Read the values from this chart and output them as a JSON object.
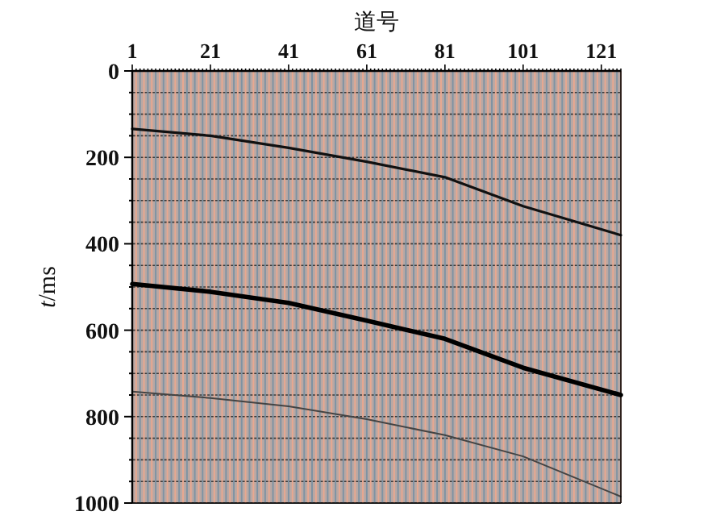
{
  "chart_data": {
    "type": "line",
    "xlabel": "道号",
    "ylabel": "*t*/ms",
    "x": [
      1,
      21,
      41,
      61,
      81,
      101,
      126
    ],
    "series": [
      {
        "color": "#111111",
        "values": [
          134,
          150,
          178,
          210,
          246,
          313,
          380
        ]
      },
      {
        "color": "#000000",
        "values": [
          493,
          511,
          537,
          578,
          620,
          687,
          750
        ]
      },
      {
        "color": "#444444",
        "values": [
          742,
          757,
          776,
          806,
          843,
          892,
          985
        ]
      }
    ],
    "xlim": [
      1,
      126
    ],
    "xticks": [
      1,
      {
        "value": 2,
        "label": null
      },
      {
        "value": 3,
        "label": null
      },
      {
        "value": 4,
        "label": null
      },
      {
        "value": 5,
        "label": null
      },
      {
        "value": 6,
        "label": null
      },
      {
        "value": 7,
        "label": null
      },
      {
        "value": 8,
        "label": null
      },
      {
        "value": 9,
        "label": null
      },
      {
        "value": 10,
        "label": null
      },
      {
        "value": 11,
        "label": null
      },
      {
        "value": 12,
        "label": null
      },
      {
        "value": 13,
        "label": null
      },
      {
        "value": 14,
        "label": null
      },
      {
        "value": 15,
        "label": null
      },
      {
        "value": 16,
        "label": null
      },
      {
        "value": 17,
        "label": null
      },
      {
        "value": 18,
        "label": null
      },
      {
        "value": 19,
        "label": null
      },
      {
        "value": 20,
        "label": null
      },
      21,
      {
        "value": 22,
        "label": null
      },
      {
        "value": 23,
        "label": null
      },
      {
        "value": 24,
        "label": null
      },
      {
        "value": 25,
        "label": null
      },
      {
        "value": 26,
        "label": null
      },
      {
        "value": 27,
        "label": null
      },
      {
        "value": 28,
        "label": null
      },
      {
        "value": 29,
        "label": null
      },
      {
        "value": 30,
        "label": null
      },
      {
        "value": 31,
        "label": null
      },
      {
        "value": 32,
        "label": null
      },
      {
        "value": 33,
        "label": null
      },
      {
        "value": 34,
        "label": null
      },
      {
        "value": 35,
        "label": null
      },
      {
        "value": 36,
        "label": null
      },
      {
        "value": 37,
        "label": null
      },
      {
        "value": 38,
        "label": null
      },
      {
        "value": 39,
        "label": null
      },
      {
        "value": 40,
        "label": null
      },
      41,
      {
        "value": 42,
        "label": null
      },
      {
        "value": 43,
        "label": null
      },
      {
        "value": 44,
        "label": null
      },
      {
        "value": 45,
        "label": null
      },
      {
        "value": 46,
        "label": null
      },
      {
        "value": 47,
        "label": null
      },
      {
        "value": 48,
        "label": null
      },
      {
        "value": 49,
        "label": null
      },
      {
        "value": 50,
        "label": null
      },
      {
        "value": 51,
        "label": null
      },
      {
        "value": 52,
        "label": null
      },
      {
        "value": 53,
        "label": null
      },
      {
        "value": 54,
        "label": null
      },
      {
        "value": 55,
        "label": null
      },
      {
        "value": 56,
        "label": null
      },
      {
        "value": 57,
        "label": null
      },
      {
        "value": 58,
        "label": null
      },
      {
        "value": 59,
        "label": null
      },
      {
        "value": 60,
        "label": null
      },
      61,
      {
        "value": 62,
        "label": null
      },
      {
        "value": 63,
        "label": null
      },
      {
        "value": 64,
        "label": null
      },
      {
        "value": 65,
        "label": null
      },
      {
        "value": 66,
        "label": null
      },
      {
        "value": 67,
        "label": null
      },
      {
        "value": 68,
        "label": null
      },
      {
        "value": 69,
        "label": null
      },
      {
        "value": 70,
        "label": null
      },
      {
        "value": 71,
        "label": null
      },
      {
        "value": 72,
        "label": null
      },
      {
        "value": 73,
        "label": null
      },
      {
        "value": 74,
        "label": null
      },
      {
        "value": 75,
        "label": null
      },
      {
        "value": 76,
        "label": null
      },
      {
        "value": 77,
        "label": null
      },
      {
        "value": 78,
        "label": null
      },
      {
        "value": 79,
        "label": null
      },
      {
        "value": 80,
        "label": null
      },
      81,
      {
        "value": 82,
        "label": null
      },
      {
        "value": 83,
        "label": null
      },
      {
        "value": 84,
        "label": null
      },
      {
        "value": 85,
        "label": null
      },
      {
        "value": 86,
        "label": null
      },
      {
        "value": 87,
        "label": null
      },
      {
        "value": 88,
        "label": null
      },
      {
        "value": 89,
        "label": null
      },
      {
        "value": 90,
        "label": null
      },
      {
        "value": 91,
        "label": null
      },
      {
        "value": 92,
        "label": null
      },
      {
        "value": 93,
        "label": null
      },
      {
        "value": 94,
        "label": null
      },
      {
        "value": 95,
        "label": null
      },
      {
        "value": 96,
        "label": null
      },
      {
        "value": 97,
        "label": null
      },
      {
        "value": 98,
        "label": null
      },
      {
        "value": 99,
        "label": null
      },
      {
        "value": 100,
        "label": null
      },
      101,
      {
        "value": 102,
        "label": null
      },
      {
        "value": 103,
        "label": null
      },
      {
        "value": 104,
        "label": null
      },
      {
        "value": 105,
        "label": null
      },
      {
        "value": 106,
        "label": null
      },
      {
        "value": 107,
        "label": null
      },
      {
        "value": 108,
        "label": null
      },
      {
        "value": 109,
        "label": null
      },
      {
        "value": 110,
        "label": null
      },
      {
        "value": 111,
        "label": null
      },
      {
        "value": 112,
        "label": null
      },
      {
        "value": 113,
        "label": null
      },
      {
        "value": 114,
        "label": null
      },
      {
        "value": 115,
        "label": null
      },
      {
        "value": 116,
        "label": null
      },
      {
        "value": 117,
        "label": null
      },
      {
        "value": 118,
        "label": null
      },
      {
        "value": 119,
        "label": null
      },
      {
        "value": 120,
        "label": null
      },
      121,
      {
        "value": 122,
        "label": null
      },
      {
        "value": 123,
        "label": null
      },
      {
        "value": 124,
        "label": null
      },
      {
        "value": 125,
        "label": null
      },
      {
        "value": 126,
        "label": null
      }
    ],
    "ylim": [
      1000,
      0
    ],
    "yticks": [
      0,
      {
        "value": 50,
        "label": null
      },
      {
        "value": 100,
        "label": null
      },
      {
        "value": 150,
        "label": null
      },
      200,
      {
        "value": 250,
        "label": null
      },
      {
        "value": 300,
        "label": null
      },
      {
        "value": 350,
        "label": null
      },
      400,
      {
        "value": 450,
        "label": null
      },
      {
        "value": 500,
        "label": null
      },
      {
        "value": 550,
        "label": null
      },
      600,
      {
        "value": 650,
        "label": null
      },
      {
        "value": 700,
        "label": null
      },
      {
        "value": 750,
        "label": null
      },
      800,
      {
        "value": 850,
        "label": null
      },
      {
        "value": 900,
        "label": null
      },
      {
        "value": 950,
        "label": null
      },
      1000
    ],
    "grid": true,
    "marker": "none",
    "line_style": "solid"
  }
}
